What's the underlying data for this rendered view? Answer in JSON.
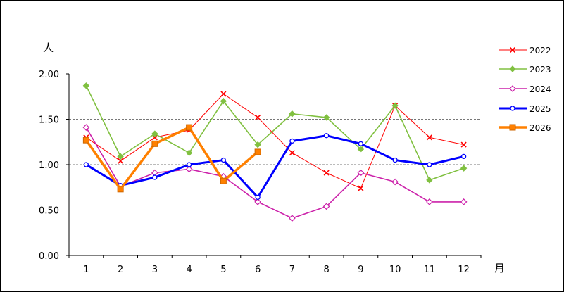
{
  "chart_data": {
    "type": "line",
    "title": "",
    "ylabel": "人",
    "xlabel": "月",
    "ylim": [
      0,
      2
    ],
    "yticks": [
      "0.00",
      "0.50",
      "1.00",
      "1.50",
      "2.00"
    ],
    "categories": [
      "1",
      "2",
      "3",
      "4",
      "5",
      "6",
      "7",
      "8",
      "9",
      "10",
      "11",
      "12"
    ],
    "grid": "horizontal dashed at 0.50, 1.00, 1.50",
    "legend_position": "right",
    "series": [
      {
        "name": "2022",
        "color": "#ff0000",
        "marker": "x",
        "values": [
          1.3,
          1.04,
          1.3,
          1.38,
          1.78,
          1.52,
          1.13,
          0.91,
          0.74,
          1.65,
          1.3,
          1.22
        ]
      },
      {
        "name": "2023",
        "color": "#80c040",
        "marker": "diamond",
        "values": [
          1.87,
          1.09,
          1.34,
          1.13,
          1.7,
          1.22,
          1.56,
          1.52,
          1.17,
          1.65,
          0.83,
          0.96
        ]
      },
      {
        "name": "2024",
        "color": "#cc22aa",
        "marker": "diamond-open",
        "values": [
          1.41,
          0.76,
          0.91,
          0.95,
          0.87,
          0.59,
          0.41,
          0.54,
          0.91,
          0.81,
          0.59,
          0.59
        ]
      },
      {
        "name": "2025",
        "color": "#0000ff",
        "marker": "circle-open",
        "values": [
          1.0,
          0.77,
          0.86,
          1.0,
          1.05,
          0.64,
          1.26,
          1.32,
          1.23,
          1.05,
          1.0,
          1.09
        ]
      },
      {
        "name": "2026",
        "color": "#ff8000",
        "marker": "square",
        "values": [
          1.27,
          0.73,
          1.23,
          1.41,
          0.82,
          1.14,
          null,
          null,
          null,
          null,
          null,
          null
        ]
      }
    ]
  }
}
